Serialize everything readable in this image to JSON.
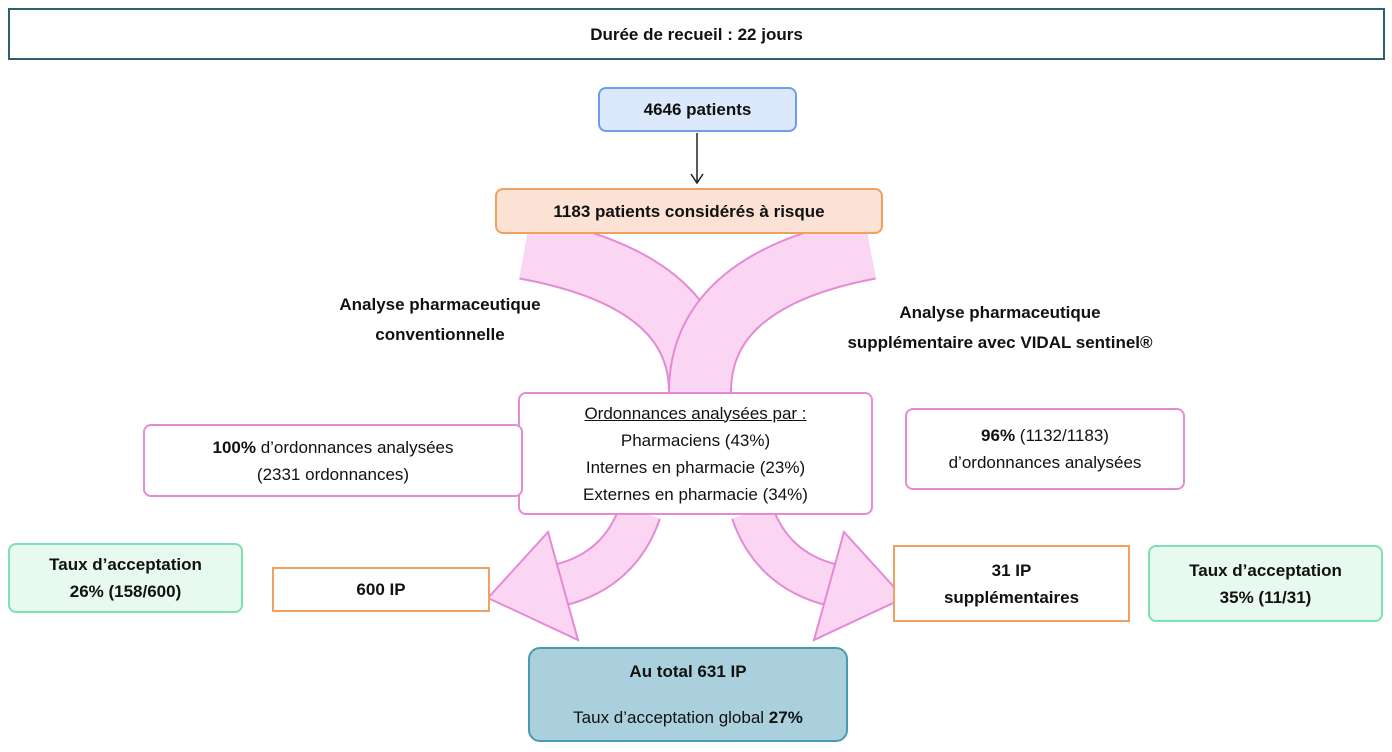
{
  "header": {
    "title": "Durée de recueil : 22 jours"
  },
  "nodes": {
    "patients": "4646 patients",
    "at_risk": "1183 patients considérés à risque",
    "left_branch": [
      "Analyse pharmaceutique",
      "conventionnelle"
    ],
    "right_branch": [
      "Analyse pharmaceutique",
      "supplémentaire avec VIDAL sentinel®"
    ],
    "center": {
      "heading": "Ordonnances analysées par :",
      "lines": [
        "Pharmaciens (43%)",
        "Internes en pharmacie (23%)",
        "Externes en pharmacie (34%)"
      ]
    },
    "left_analysis": {
      "bold": "100%",
      "text": " d’ordonnances analysées",
      "line2": "(2331 ordonnances)"
    },
    "right_analysis": {
      "bold": "96%",
      "text": " (1132/1183)",
      "line2": "d’ordonnances analysées"
    },
    "left_acceptance": [
      "Taux d’acceptation",
      "26% (158/600)"
    ],
    "left_ip": "600 IP",
    "right_ip": [
      "31 IP",
      "supplémentaires"
    ],
    "right_acceptance": [
      "Taux d’acceptation",
      "35% (11/31)"
    ],
    "total": {
      "title": "Au total 631 IP",
      "text": "Taux d’acceptation global ",
      "bold": "27%"
    }
  }
}
